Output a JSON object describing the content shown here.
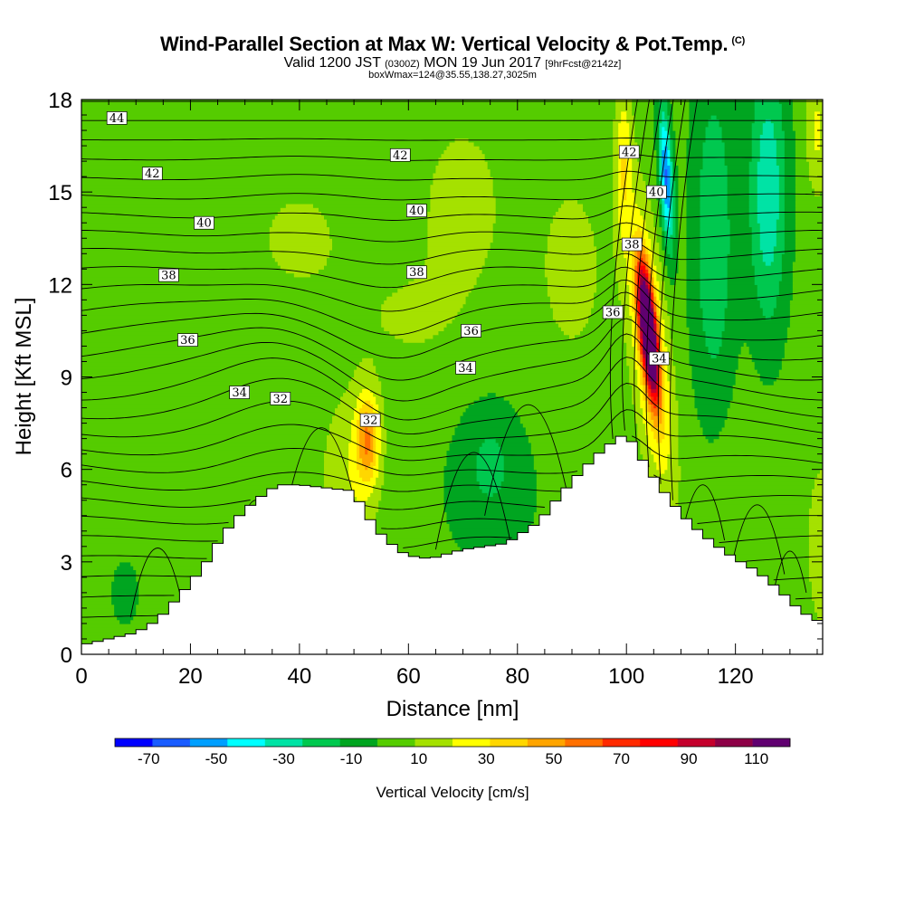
{
  "header": {
    "title": "Wind-Parallel Section at Max W: Vertical Velocity & Pot.Temp.",
    "copyright_mark": "(C)",
    "valid_prefix": "Valid 1200 JST",
    "valid_utc": "(0300Z)",
    "valid_date": "MON 19 Jun 2017",
    "forecast_tag": "[9hrFcst@2142z]",
    "box_info": "boxWmax=124@35.55,138.27,3025m"
  },
  "chart_data": {
    "type": "heatmap",
    "title": "Wind-Parallel Section at Max W: Vertical Velocity & Pot.Temp.",
    "xlabel": "Distance [nm]",
    "ylabel": "Height [Kft MSL]",
    "xlim": [
      0,
      136
    ],
    "ylim": [
      0,
      18
    ],
    "x_ticks": [
      0,
      20,
      40,
      60,
      80,
      100,
      120
    ],
    "y_ticks": [
      0,
      3,
      6,
      9,
      12,
      15,
      18
    ],
    "x_tick_labels": [
      "0",
      "20",
      "40",
      "60",
      "80",
      "100",
      "120"
    ],
    "y_tick_labels": [
      "0",
      "3",
      "6",
      "9",
      "12",
      "15",
      "18"
    ],
    "colorbar": {
      "label": "Vertical Velocity [cm/s]",
      "tick_labels": [
        "-70",
        "-50",
        "-30",
        "-10",
        "10",
        "30",
        "50",
        "70",
        "90",
        "110"
      ],
      "min": -80,
      "max": 120,
      "step": 10,
      "colors": [
        "#0000ff",
        "#1a5cff",
        "#009fff",
        "#00ffff",
        "#00e3a5",
        "#00c84f",
        "#00a520",
        "#55cc00",
        "#a5e100",
        "#ffff00",
        "#ffd700",
        "#ffa500",
        "#ff7000",
        "#ff2a00",
        "#ff0000",
        "#c4002c",
        "#8c0046",
        "#600070"
      ]
    },
    "terrain_kft": [
      [
        0,
        0.3
      ],
      [
        10,
        0.7
      ],
      [
        14,
        1.1
      ],
      [
        17,
        1.7
      ],
      [
        20,
        2.3
      ],
      [
        23,
        3.0
      ],
      [
        26,
        3.9
      ],
      [
        29,
        4.5
      ],
      [
        32,
        5.0
      ],
      [
        36,
        5.5
      ],
      [
        40,
        5.5
      ],
      [
        45,
        5.4
      ],
      [
        50,
        5.3
      ],
      [
        52,
        4.6
      ],
      [
        55,
        3.9
      ],
      [
        58,
        3.4
      ],
      [
        60,
        3.2
      ],
      [
        64,
        3.1
      ],
      [
        70,
        3.4
      ],
      [
        78,
        3.6
      ],
      [
        84,
        4.3
      ],
      [
        88,
        5.2
      ],
      [
        92,
        6.0
      ],
      [
        96,
        6.7
      ],
      [
        100,
        7.2
      ],
      [
        104,
        6.0
      ],
      [
        108,
        5.0
      ],
      [
        112,
        4.2
      ],
      [
        116,
        3.6
      ],
      [
        120,
        3.1
      ],
      [
        124,
        2.7
      ],
      [
        128,
        2.1
      ],
      [
        132,
        1.4
      ],
      [
        136,
        1.0
      ]
    ],
    "velocity_features": [
      {
        "kind": "updraft",
        "x": 104,
        "y": 10.5,
        "peak_cm_s": 124
      },
      {
        "kind": "updraft",
        "x": 52,
        "y": 7.0,
        "peak_cm_s": 40
      },
      {
        "kind": "downdraft",
        "x": 107,
        "y": 15.5,
        "peak_cm_s": -50
      },
      {
        "kind": "downdraft",
        "x": 126,
        "y": 15.0,
        "peak_cm_s": -30
      },
      {
        "kind": "downdraft",
        "x": 75,
        "y": 6.3,
        "peak_cm_s": -15
      }
    ],
    "theta_contour_labels": [
      {
        "text": "44",
        "x": 6.5,
        "y": 17.4
      },
      {
        "text": "42",
        "x": 13,
        "y": 15.6
      },
      {
        "text": "40",
        "x": 22.5,
        "y": 14.0
      },
      {
        "text": "38",
        "x": 16,
        "y": 12.3
      },
      {
        "text": "36",
        "x": 19.5,
        "y": 10.2
      },
      {
        "text": "34",
        "x": 29,
        "y": 8.5
      },
      {
        "text": "32",
        "x": 36.5,
        "y": 8.3
      },
      {
        "text": "32",
        "x": 53,
        "y": 7.6
      },
      {
        "text": "42",
        "x": 58.5,
        "y": 16.2
      },
      {
        "text": "40",
        "x": 61.5,
        "y": 14.4
      },
      {
        "text": "38",
        "x": 61.5,
        "y": 12.4
      },
      {
        "text": "36",
        "x": 71.5,
        "y": 10.5
      },
      {
        "text": "34",
        "x": 70.5,
        "y": 9.3
      },
      {
        "text": "42",
        "x": 100.5,
        "y": 16.3
      },
      {
        "text": "40",
        "x": 105.5,
        "y": 15.0
      },
      {
        "text": "38",
        "x": 101,
        "y": 13.3
      },
      {
        "text": "36",
        "x": 97.5,
        "y": 11.1
      },
      {
        "text": "34",
        "x": 106,
        "y": 9.6
      }
    ]
  }
}
